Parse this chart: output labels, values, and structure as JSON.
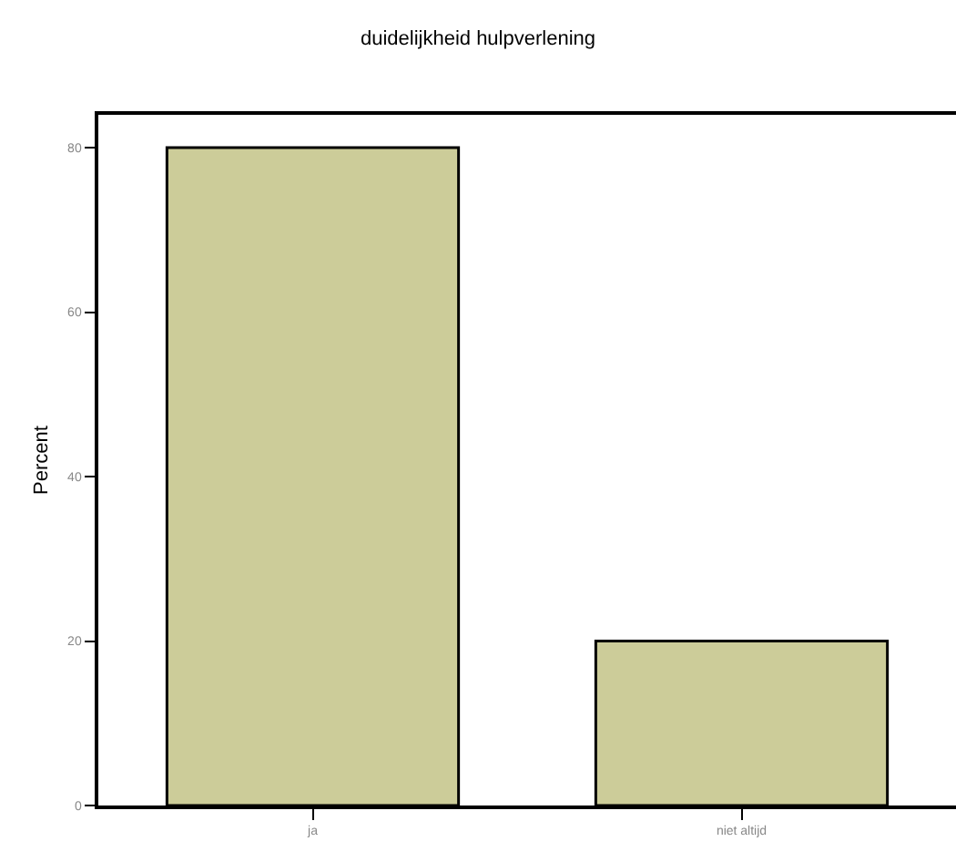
{
  "chart_data": {
    "type": "bar",
    "title": "duidelijkheid hulpverlening",
    "ylabel": "Percent",
    "categories": [
      "ja",
      "niet altijd"
    ],
    "series": [
      {
        "color": "#cccc99",
        "values": [
          80,
          20
        ]
      }
    ],
    "ylim": [
      0,
      84
    ],
    "yticks": [
      0,
      20,
      40,
      60,
      80
    ],
    "legend": false
  }
}
